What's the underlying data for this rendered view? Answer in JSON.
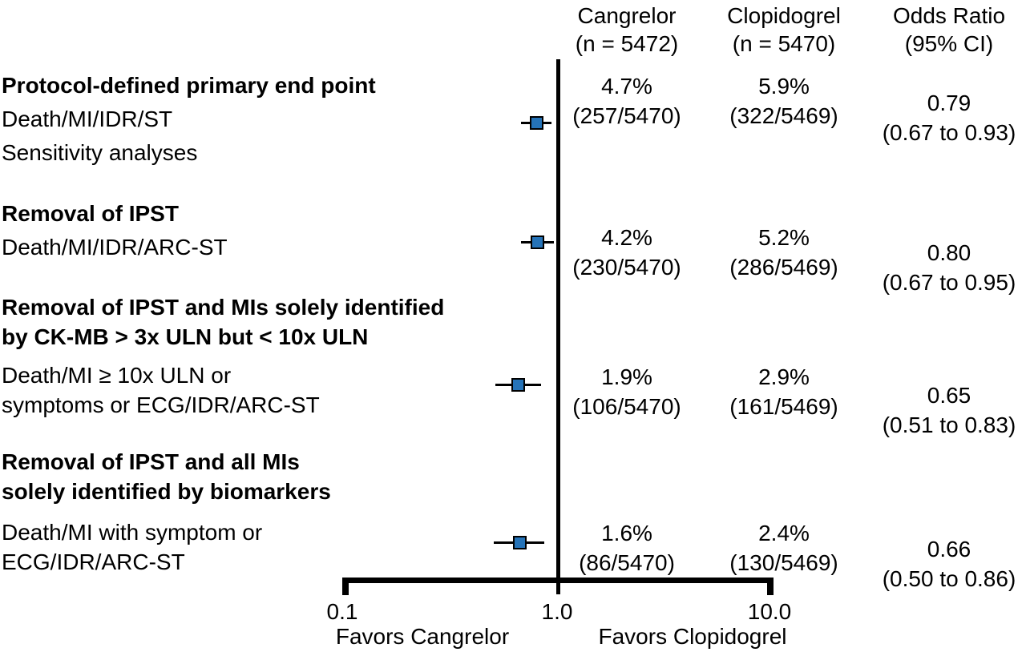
{
  "columns": {
    "cangrelor": {
      "line1": "Cangrelor",
      "line2": "(n = 5472)"
    },
    "clopidogrel": {
      "line1": "Clopidogrel",
      "line2": "(n = 5470)"
    },
    "odds_ratio": {
      "line1": "Odds Ratio",
      "line2": "(95% CI)"
    }
  },
  "axis": {
    "tick_labels": [
      "0.1",
      "1.0",
      "10.0"
    ],
    "favors_left": "Favors Cangrelor",
    "favors_right": "Favors Clopidogrel"
  },
  "colors": {
    "marker_fill": "#2573b8",
    "marker_border": "#000000",
    "line": "#000000",
    "text": "#000000",
    "background": "#ffffff"
  },
  "chart_data": {
    "type": "forest",
    "x_scale": "log",
    "xlim": [
      0.1,
      10
    ],
    "x_ticks": [
      0.1,
      1.0,
      10.0
    ],
    "reference_line": 1.0,
    "legend_position": "none",
    "grid": false,
    "series_columns": [
      "Cangrelor (n = 5472)",
      "Clopidogrel (n = 5470)",
      "Odds Ratio (95% CI)"
    ],
    "rows": [
      {
        "section_lines": [
          "Protocol-defined primary end point"
        ],
        "label_lines": [
          "Death/MI/IDR/ST"
        ],
        "after_lines": [
          "Sensitivity analyses"
        ],
        "cangrelor": {
          "pct": "4.7%",
          "frac": "(257/5470)"
        },
        "clopidogrel": {
          "pct": "5.9%",
          "frac": "(322/5469)"
        },
        "odds_ratio": 0.79,
        "ci_low": 0.67,
        "ci_high": 0.93,
        "or_label": "0.79",
        "ci_label": "(0.67 to 0.93)"
      },
      {
        "section_lines": [
          "Removal of IPST"
        ],
        "label_lines": [
          "Death/MI/IDR/ARC-ST"
        ],
        "after_lines": [],
        "cangrelor": {
          "pct": "4.2%",
          "frac": "(230/5470)"
        },
        "clopidogrel": {
          "pct": "5.2%",
          "frac": "(286/5469)"
        },
        "odds_ratio": 0.8,
        "ci_low": 0.67,
        "ci_high": 0.95,
        "or_label": "0.80",
        "ci_label": "(0.67 to 0.95)"
      },
      {
        "section_lines": [
          "Removal of IPST and MIs solely identified",
          "by CK-MB > 3x ULN but < 10x ULN"
        ],
        "label_lines": [
          "Death/MI ≥ 10x ULN or",
          "symptoms or ECG/IDR/ARC-ST"
        ],
        "after_lines": [],
        "cangrelor": {
          "pct": "1.9%",
          "frac": "(106/5470)"
        },
        "clopidogrel": {
          "pct": "2.9%",
          "frac": "(161/5469)"
        },
        "odds_ratio": 0.65,
        "ci_low": 0.51,
        "ci_high": 0.83,
        "or_label": "0.65",
        "ci_label": "(0.51 to 0.83)"
      },
      {
        "section_lines": [
          "Removal of IPST and all MIs",
          "solely identified by biomarkers"
        ],
        "label_lines": [
          "Death/MI with symptom or",
          "ECG/IDR/ARC-ST"
        ],
        "after_lines": [],
        "cangrelor": {
          "pct": "1.6%",
          "frac": "(86/5470)"
        },
        "clopidogrel": {
          "pct": "2.4%",
          "frac": "(130/5469)"
        },
        "odds_ratio": 0.66,
        "ci_low": 0.5,
        "ci_high": 0.86,
        "or_label": "0.66",
        "ci_label": "(0.50 to 0.86)"
      }
    ]
  }
}
